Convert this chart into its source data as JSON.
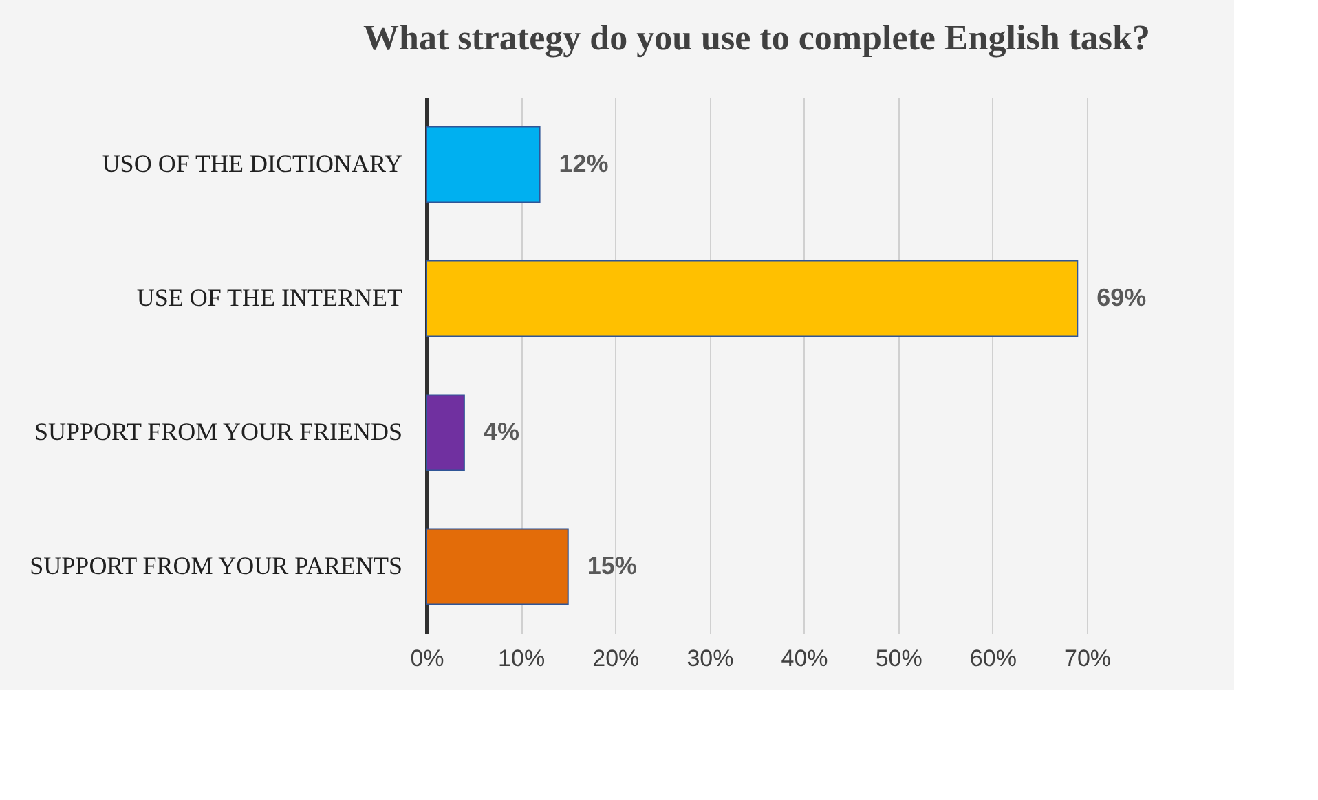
{
  "chart_data": {
    "type": "bar",
    "orientation": "horizontal",
    "title": "What strategy do you use to complete English task?",
    "categories": [
      "USO OF THE DICTIONARY",
      "USE OF THE INTERNET",
      "SUPPORT FROM YOUR FRIENDS",
      "SUPPORT FROM YOUR PARENTS"
    ],
    "values": [
      12,
      69,
      4,
      15
    ],
    "colors": [
      "#00b0f0",
      "#ffc000",
      "#7030a0",
      "#e36c09"
    ],
    "value_labels": [
      "12%",
      "69%",
      "4%",
      "15%"
    ],
    "xlim": [
      0,
      70
    ],
    "xticks": [
      {
        "value": 0,
        "label": "0%"
      },
      {
        "value": 10,
        "label": "10%"
      },
      {
        "value": 20,
        "label": "20%"
      },
      {
        "value": 30,
        "label": "30%"
      },
      {
        "value": 40,
        "label": "40%"
      },
      {
        "value": 50,
        "label": "50%"
      },
      {
        "value": 60,
        "label": "60%"
      },
      {
        "value": 70,
        "label": "70%"
      }
    ],
    "grid": "x"
  }
}
